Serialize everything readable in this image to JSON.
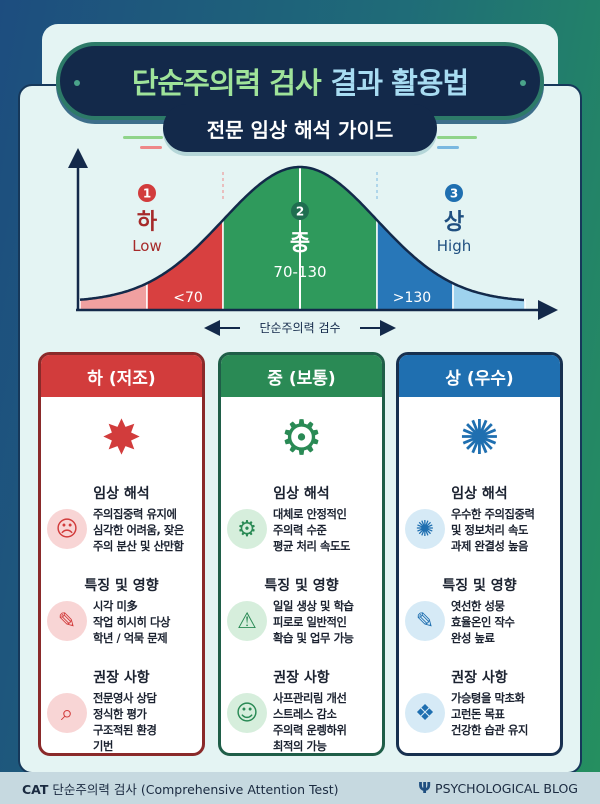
{
  "header": {
    "title_part1": "단순주의력 검사",
    "title_part2": "결과 활용법",
    "subtitle": "전문 임상 해석 가이드"
  },
  "chart": {
    "low": {
      "num": "1",
      "label": "하",
      "en": "Low",
      "range": "<70",
      "color": "#d84040"
    },
    "mid": {
      "num": "2",
      "label": "중",
      "range": "70-130",
      "color": "#2f9a5c"
    },
    "high": {
      "num": "3",
      "label": "상",
      "en": "High",
      "range": ">130",
      "color": "#2877b8"
    },
    "x_axis_label": "단순주의력 검수"
  },
  "columns": [
    {
      "title": "하 (저조)",
      "color": "#d23c3c",
      "border": "#8a2a2a",
      "tint": "#f8d5d5",
      "hero_icon": "broken-brain-icon",
      "sections": [
        {
          "heading": "임상 해석",
          "icon": "distracted-head-icon",
          "lines": [
            "주의집중력 유지에",
            "심각한 어려움, 잦은",
            "주의 분산 및 산만함"
          ]
        },
        {
          "heading": "특징 및 영향",
          "icon": "checklist-pencil-icon",
          "lines": [
            "시각 미多",
            "작업 히시히 다상",
            "학년 / 억묵 문제"
          ]
        },
        {
          "heading": "권장 사항",
          "icon": "clipboard-magnifier-icon",
          "lines": [
            "전문영사 상담",
            "정식한 평가",
            "구조적된 환경",
            "기번"
          ]
        }
      ]
    },
    {
      "title": "중 (보통)",
      "color": "#2a8a55",
      "border": "#1f5e48",
      "tint": "#d6eedc",
      "hero_icon": "person-gears-icon",
      "sections": [
        {
          "heading": "임상 해석",
          "icon": "gear-clock-icon",
          "lines": [
            "대체로 안정적인",
            "주의력 수준",
            "평균 처리 속도도"
          ]
        },
        {
          "heading": "특징 및 영향",
          "icon": "calendar-warning-icon",
          "lines": [
            "일일 생상 및 학습",
            "피로로 일반적인",
            "확습 및 업무 가능"
          ]
        },
        {
          "heading": "권장 사항",
          "icon": "calm-person-icon",
          "lines": [
            "사프관리림 개선",
            "스트레스 감소",
            "주의력 운렝하위",
            "최적의 가능"
          ]
        }
      ]
    },
    {
      "title": "상 (우수)",
      "color": "#1f6fb0",
      "border": "#17304f",
      "tint": "#d6eaf6",
      "hero_icon": "brain-telescope-icon",
      "sections": [
        {
          "heading": "임상 해석",
          "icon": "brain-telescope-icon",
          "lines": [
            "우수한 주의집중력",
            "및 정보처리 속도",
            "과제 완결성 높음"
          ]
        },
        {
          "heading": "특징 및 영향",
          "icon": "checklist-pencil-icon",
          "lines": [
            "엿선한 성뭉",
            "효율온인 작수",
            "완성 높료"
          ]
        },
        {
          "heading": "권장 사항",
          "icon": "hands-gem-icon",
          "lines": [
            "가승텽을 막초화",
            "고런돈 목표",
            "건강한 습관 유지"
          ]
        }
      ]
    }
  ],
  "footer": {
    "left_bold": "CAT",
    "left_text": "단순주의력 검사 (Comprehensive Attention Test)",
    "right_icon": "psi-icon",
    "right_text": "PSYCHOLOGICAL BLOG"
  }
}
